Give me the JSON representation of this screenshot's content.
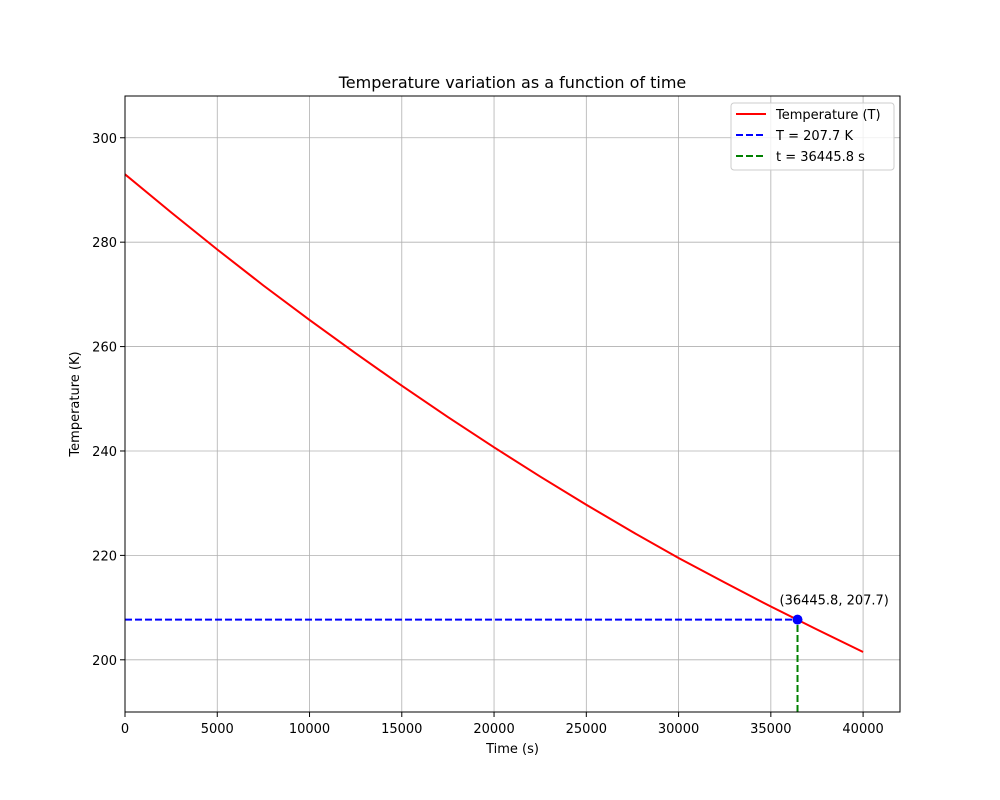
{
  "chart_data": {
    "type": "line",
    "title": "Temperature variation as a function of time",
    "xlabel": "Time (s)",
    "ylabel": "Temperature (K)",
    "xlim": [
      0,
      42000
    ],
    "ylim": [
      190,
      308
    ],
    "grid": true,
    "legend_placement": "top-right",
    "x_ticks": [
      0,
      5000,
      10000,
      15000,
      20000,
      25000,
      30000,
      35000,
      40000
    ],
    "y_ticks": [
      200,
      220,
      240,
      260,
      280,
      300
    ],
    "x_tick_labels": [
      "0",
      "5000",
      "10000",
      "15000",
      "20000",
      "25000",
      "30000",
      "35000",
      "40000"
    ],
    "y_tick_labels": [
      "200",
      "220",
      "240",
      "260",
      "280",
      "300"
    ],
    "series": [
      {
        "name": "Temperature (T)",
        "color": "#ff0000",
        "style": "solid",
        "x": [
          0,
          2500,
          5000,
          7500,
          10000,
          12500,
          15000,
          17500,
          20000,
          22500,
          25000,
          27500,
          30000,
          32500,
          35000,
          37500,
          40000
        ],
        "y": [
          293.0,
          285.7,
          278.6,
          271.7,
          265.1,
          258.7,
          252.5,
          246.5,
          240.7,
          235.1,
          229.7,
          224.5,
          219.5,
          214.8,
          210.2,
          205.8,
          201.5
        ]
      }
    ],
    "reference_lines": [
      {
        "name": "T = 207.7 K",
        "color": "#0000ff",
        "style": "dashed",
        "orientation": "horizontal",
        "y": 207.7,
        "x_from": 0,
        "x_to": 36445.8
      },
      {
        "name": "t = 36445.8 s",
        "color": "#008000",
        "style": "dashed",
        "orientation": "vertical",
        "x": 36445.8,
        "y_from": 190,
        "y_to": 207.7
      }
    ],
    "marker": {
      "x": 36445.8,
      "y": 207.7,
      "color": "#0000ff"
    },
    "annotation": {
      "text": "(36445.8, 207.7)",
      "x": 36445.8,
      "y": 207.7
    }
  }
}
